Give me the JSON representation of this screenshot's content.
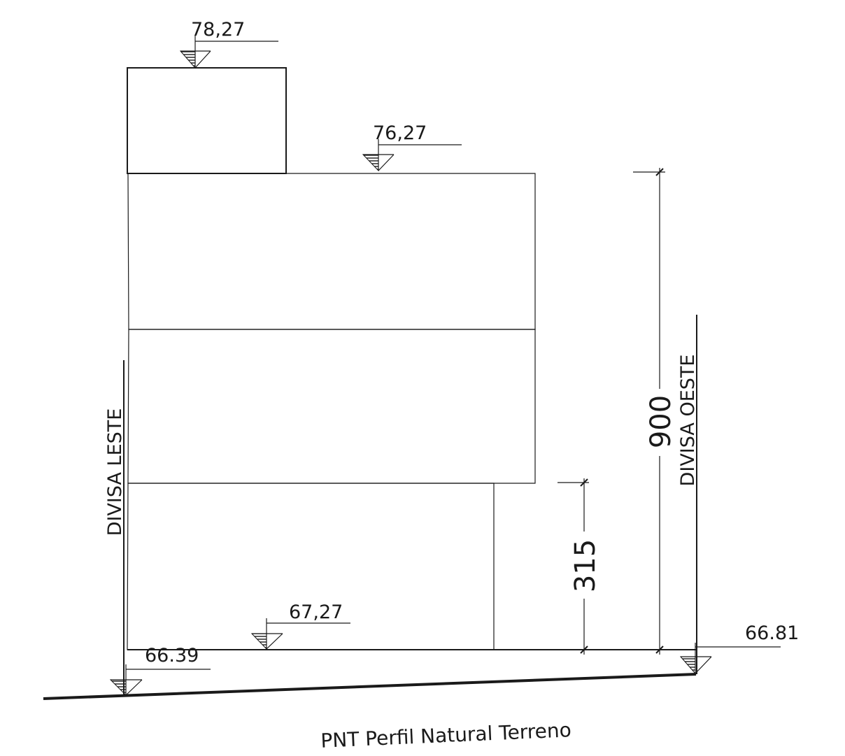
{
  "elevations": {
    "roof_top": "78,27",
    "upper_floor": "76,27",
    "ground_floor": "67,27",
    "terrain_east": "66.39",
    "terrain_west": "66.81"
  },
  "dimensions": {
    "total_height": "900",
    "ground_floor_height": "315"
  },
  "boundaries": {
    "east": "DIVISA LESTE",
    "west": "DIVISA OESTE"
  },
  "caption": "PNT Perfil Natural Terreno",
  "colors": {
    "line": "#1a1a1a",
    "background": "#ffffff"
  }
}
